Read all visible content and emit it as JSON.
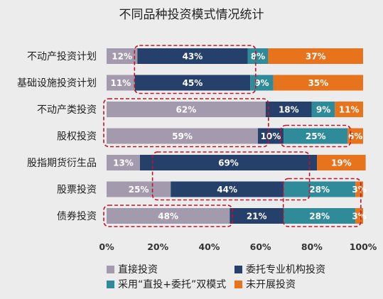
{
  "chart_data": {
    "type": "bar",
    "stacked": true,
    "orientation": "horizontal",
    "title": "不同品种投资模式情况统计",
    "categories": [
      "不动产投资计划",
      "基础设施投资计划",
      "不动产类投资",
      "股权投资",
      "股指期货衍生品",
      "股票投资",
      "债券投资"
    ],
    "series": [
      {
        "name": "直接投资",
        "color": "#a49aae",
        "values": [
          12,
          11,
          62,
          59,
          13,
          25,
          48
        ]
      },
      {
        "name": "委托专业机构投资",
        "color": "#25406b",
        "values": [
          43,
          45,
          18,
          10,
          69,
          44,
          21
        ]
      },
      {
        "name": "采用“直投+委托”双模式",
        "color": "#2f8b9a",
        "values": [
          8,
          9,
          9,
          25,
          0,
          28,
          28
        ]
      },
      {
        "name": "未开展投资",
        "color": "#e8731d",
        "values": [
          37,
          35,
          11,
          6,
          19,
          3,
          3
        ]
      }
    ],
    "value_labels": [
      [
        "12%",
        "43%",
        "8%",
        "37%"
      ],
      [
        "11%",
        "45%",
        "9%",
        "35%"
      ],
      [
        "62%",
        "18%",
        "9%",
        "11%"
      ],
      [
        "59%",
        "10%",
        "25%",
        "6%"
      ],
      [
        "13%",
        "69%",
        "",
        "19%"
      ],
      [
        "25%",
        "44%",
        "28%",
        "3%"
      ],
      [
        "48%",
        "21%",
        "28%",
        "3%"
      ]
    ],
    "xlim": [
      0,
      100
    ],
    "xticks": [
      "0%",
      "20%",
      "40%",
      "60%",
      "80%",
      "100%"
    ],
    "highlight_boxes": [
      {
        "from_row": 0,
        "to_row": 1,
        "x_from": 12,
        "x_to": 57
      },
      {
        "from_row": 2,
        "to_row": 3,
        "x_from": 0,
        "x_to": 62
      },
      {
        "from_row": 3,
        "to_row": 3,
        "x_from": 69,
        "x_to": 94
      },
      {
        "from_row": 4,
        "to_row": 5,
        "x_from": 19,
        "x_to": 78
      },
      {
        "from_row": 5,
        "to_row": 6,
        "x_from": 70,
        "x_to": 98
      },
      {
        "from_row": 6,
        "to_row": 6,
        "x_from": 0,
        "x_to": 48
      }
    ],
    "highlight_color": "#c0142a",
    "legend_position": "bottom",
    "grid": false
  }
}
